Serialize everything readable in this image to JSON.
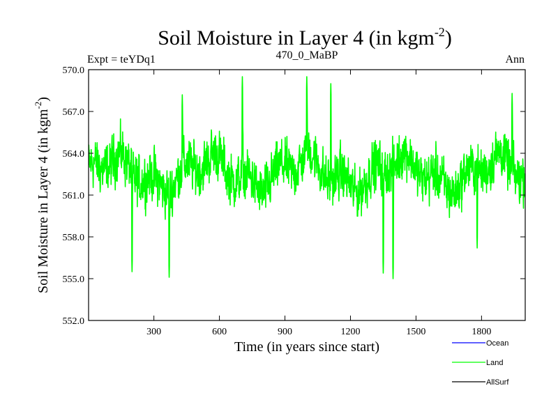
{
  "chart_data": {
    "type": "line",
    "title": "Soil Moisture in Layer 4 (in kgm",
    "title_sup": "-2",
    "title_close": ")",
    "subtitle_left": "Expt = teYDq1",
    "subtitle_center": "470_0_MaBP",
    "subtitle_right": "Ann",
    "xlabel": "Time (in years since start)",
    "ylabel": "Soil Moisture in Layer 4 (in kgm",
    "ylabel_sup": "-2",
    "ylabel_close": ")",
    "xlim": [
      1,
      2000
    ],
    "ylim": [
      552,
      570
    ],
    "xticks": [
      300,
      600,
      900,
      1200,
      1500,
      1800
    ],
    "xtick_labels": [
      "300",
      "600",
      "900",
      "1200",
      "1500",
      "1800"
    ],
    "yticks": [
      552,
      555,
      558,
      561,
      564,
      567,
      570
    ],
    "ytick_labels": [
      "552.0",
      "555.0",
      "558.0",
      "561.0",
      "564.0",
      "567.0",
      "570.0"
    ],
    "series": [
      {
        "name": "Land",
        "color": "#00ff00",
        "baseline": 562.6,
        "noise_amplitude": 1.8,
        "n_points": 2000,
        "peaks": [
          {
            "x": 705,
            "y": 569.5
          },
          {
            "x": 1000,
            "y": 569.5
          },
          {
            "x": 1110,
            "y": 569.0
          },
          {
            "x": 1940,
            "y": 568.3
          },
          {
            "x": 430,
            "y": 568.2
          }
        ],
        "troughs": [
          {
            "x": 200,
            "y": 555.5
          },
          {
            "x": 370,
            "y": 555.1
          },
          {
            "x": 1350,
            "y": 555.4
          },
          {
            "x": 1395,
            "y": 555.0
          },
          {
            "x": 1780,
            "y": 557.2
          }
        ]
      }
    ],
    "legend": [
      {
        "label": "Ocean",
        "color": "#0000ff"
      },
      {
        "label": "Land",
        "color": "#00ff00"
      },
      {
        "label": "AllSurf",
        "color": "#000000"
      }
    ]
  }
}
